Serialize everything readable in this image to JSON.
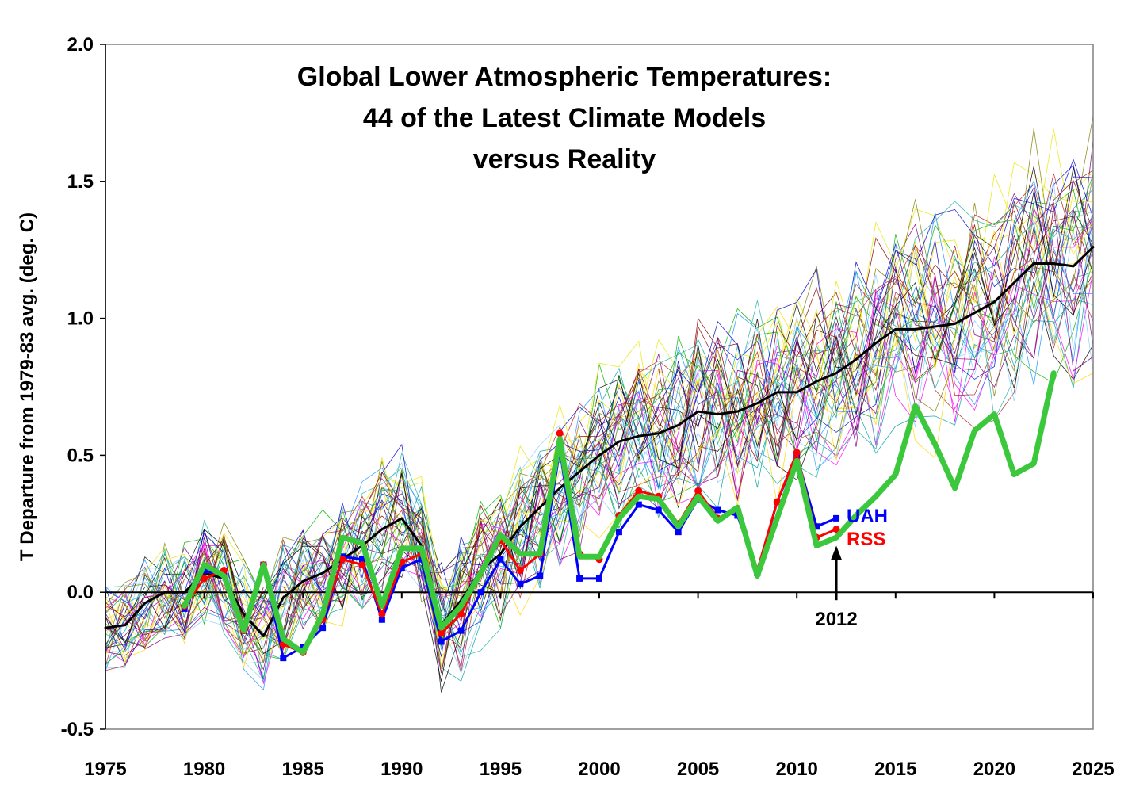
{
  "chart_data": {
    "type": "line",
    "title_lines": [
      "Global Lower Atmospheric Temperatures:",
      "44 of the Latest Climate Models",
      "versus Reality"
    ],
    "xlabel": "",
    "ylabel": "T Departure from 1979-83 avg. (deg. C)",
    "xlim": [
      1975,
      2025
    ],
    "ylim": [
      -0.5,
      2.0
    ],
    "x_ticks": [
      "1975",
      "1980",
      "1985",
      "1990",
      "1995",
      "2000",
      "2005",
      "2010",
      "2015",
      "2020",
      "2025"
    ],
    "y_ticks": [
      "2.0",
      "1.5",
      "1.0",
      "0.5",
      "0.0",
      "-0.5"
    ],
    "grid": false,
    "annotations": [
      {
        "text": "2012",
        "x": 2012,
        "y": 0.0,
        "arrow_to_y": 0.17
      }
    ],
    "series": [
      {
        "name": "UAH",
        "color": "#0000ff",
        "x": [
          1979,
          1980,
          1981,
          1982,
          1983,
          1984,
          1985,
          1986,
          1987,
          1988,
          1989,
          1990,
          1991,
          1992,
          1993,
          1994,
          1995,
          1996,
          1997,
          1998,
          1999,
          2000,
          2001,
          2002,
          2003,
          2004,
          2005,
          2006,
          2007,
          2008,
          2009,
          2010,
          2011,
          2012
        ],
        "values": [
          -0.06,
          0.08,
          0.06,
          -0.14,
          0.1,
          -0.24,
          -0.2,
          -0.13,
          0.13,
          0.12,
          -0.1,
          0.09,
          0.12,
          -0.18,
          -0.14,
          0.0,
          0.12,
          0.03,
          0.06,
          0.52,
          0.05,
          0.05,
          0.22,
          0.32,
          0.3,
          0.22,
          0.34,
          0.3,
          0.28,
          0.07,
          0.33,
          0.5,
          0.24,
          0.27
        ]
      },
      {
        "name": "RSS",
        "color": "#ff0000",
        "x": [
          1979,
          1980,
          1981,
          1982,
          1983,
          1984,
          1985,
          1986,
          1987,
          1988,
          1989,
          1990,
          1991,
          1992,
          1993,
          1994,
          1995,
          1996,
          1997,
          1998,
          1999,
          2000,
          2001,
          2002,
          2003,
          2004,
          2005,
          2006,
          2007,
          2008,
          2009,
          2010,
          2011,
          2012
        ],
        "values": [
          -0.05,
          0.05,
          0.08,
          -0.14,
          0.1,
          -0.19,
          -0.22,
          -0.1,
          0.12,
          0.1,
          -0.08,
          0.11,
          0.14,
          -0.15,
          -0.08,
          0.07,
          0.19,
          0.08,
          0.14,
          0.58,
          0.14,
          0.12,
          0.28,
          0.37,
          0.35,
          0.25,
          0.37,
          0.27,
          0.3,
          0.08,
          0.33,
          0.51,
          0.2,
          0.23
        ]
      },
      {
        "name": "",
        "color": "#3cc83c",
        "x": [
          1979,
          1980,
          1981,
          1982,
          1983,
          1984,
          1985,
          1986,
          1987,
          1988,
          1989,
          1990,
          1991,
          1992,
          1993,
          1994,
          1995,
          1996,
          1997,
          1998,
          1999,
          2000,
          2001,
          2002,
          2003,
          2004,
          2005,
          2006,
          2007,
          2008,
          2009,
          2010,
          2011,
          2012,
          2013,
          2014,
          2015,
          2016,
          2017,
          2018,
          2019,
          2020,
          2021,
          2022,
          2023
        ],
        "values": [
          -0.05,
          0.1,
          0.06,
          -0.14,
          0.1,
          -0.17,
          -0.22,
          -0.08,
          0.2,
          0.18,
          -0.05,
          0.16,
          0.16,
          -0.13,
          -0.05,
          0.07,
          0.21,
          0.14,
          0.14,
          0.56,
          0.13,
          0.13,
          0.27,
          0.35,
          0.34,
          0.24,
          0.35,
          0.26,
          0.31,
          0.06,
          0.27,
          0.48,
          0.17,
          0.2,
          0.28,
          0.35,
          0.43,
          0.68,
          0.54,
          0.38,
          0.59,
          0.65,
          0.43,
          0.47,
          0.8
        ]
      },
      {
        "name": "",
        "color": "#000000",
        "x": [
          1975,
          1976,
          1977,
          1978,
          1979,
          1980,
          1981,
          1982,
          1983,
          1984,
          1985,
          1986,
          1987,
          1988,
          1989,
          1990,
          1991,
          1992,
          1993,
          1994,
          1995,
          1996,
          1997,
          1998,
          1999,
          2000,
          2001,
          2002,
          2003,
          2004,
          2005,
          2006,
          2007,
          2008,
          2009,
          2010,
          2011,
          2012,
          2013,
          2014,
          2015,
          2016,
          2017,
          2018,
          2019,
          2020,
          2021,
          2022,
          2023,
          2024,
          2025
        ],
        "values": [
          -0.13,
          -0.12,
          -0.04,
          0.0,
          0.0,
          0.07,
          0.05,
          -0.08,
          -0.16,
          -0.02,
          0.04,
          0.07,
          0.12,
          0.17,
          0.23,
          0.27,
          0.17,
          -0.12,
          -0.03,
          0.08,
          0.14,
          0.24,
          0.31,
          0.38,
          0.44,
          0.5,
          0.55,
          0.57,
          0.58,
          0.61,
          0.66,
          0.65,
          0.66,
          0.69,
          0.73,
          0.73,
          0.77,
          0.8,
          0.85,
          0.91,
          0.96,
          0.96,
          0.97,
          0.98,
          1.02,
          1.06,
          1.13,
          1.2,
          1.2,
          1.19,
          1.26
        ]
      }
    ],
    "model_colors": [
      "#000000",
      "#7f007f",
      "#00a0a0",
      "#1e90ff",
      "#e8e800",
      "#8b0000",
      "#00b000",
      "#ff00ff",
      "#87cefa",
      "#0000cd",
      "#ffd700",
      "#808000",
      "#b22222",
      "#20b2aa"
    ]
  }
}
